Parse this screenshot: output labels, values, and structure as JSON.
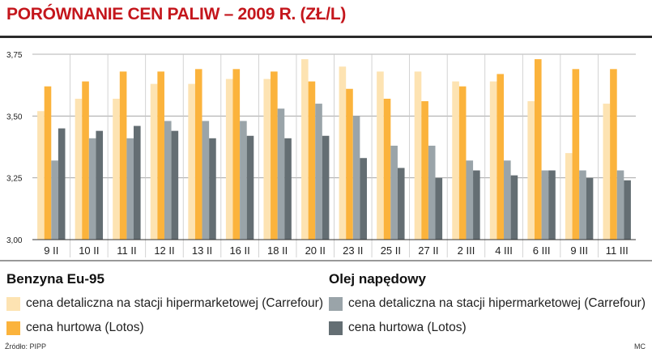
{
  "header": {
    "title": "PORÓWNANIE CEN PALIW – 2009 R. (ZŁ/L)"
  },
  "colors": {
    "benzyna_detal": "#fde3b2",
    "benzyna_hurt": "#fbb33c",
    "olej_detal": "#9aa4a9",
    "olej_hurt": "#646e73",
    "title": "#c4161c"
  },
  "legend": {
    "group1_title": "Benzyna Eu-95",
    "group1_items": [
      "cena detaliczna na stacji hipermarketowej (Carrefour)",
      "cena hurtowa (Lotos)"
    ],
    "group2_title": "Olej napędowy",
    "group2_items": [
      "cena detaliczna na stacji hipermarketowej (Carrefour)",
      "cena hurtowa (Lotos)"
    ]
  },
  "footer": {
    "source": "Źródło: PIPP",
    "author": "MC"
  },
  "chart_data": {
    "type": "bar",
    "title": "PORÓWNANIE CEN PALIW – 2009 R. (ZŁ/L)",
    "categories": [
      "9 II",
      "10 II",
      "11 II",
      "12 II",
      "13 II",
      "16 II",
      "18 II",
      "20 II",
      "23 II",
      "25 II",
      "27 II",
      "2 III",
      "4 III",
      "6 III",
      "9 III",
      "11 III"
    ],
    "ylim": [
      3.0,
      3.75
    ],
    "yticks": [
      "3,00",
      "3,25",
      "3,50",
      "3,75"
    ],
    "ytick_values": [
      3.0,
      3.25,
      3.5,
      3.75
    ],
    "grid": true,
    "legend_position": "bottom",
    "series": [
      {
        "name": "Benzyna Eu-95 – cena detaliczna na stacji hipermarketowej (Carrefour)",
        "values": [
          3.52,
          3.57,
          3.57,
          3.63,
          3.63,
          3.65,
          3.65,
          3.73,
          3.7,
          3.68,
          3.68,
          3.64,
          3.64,
          3.56,
          3.35,
          3.55
        ]
      },
      {
        "name": "Benzyna Eu-95 – cena hurtowa (Lotos)",
        "values": [
          3.62,
          3.64,
          3.68,
          3.68,
          3.69,
          3.69,
          3.68,
          3.64,
          3.61,
          3.57,
          3.56,
          3.62,
          3.67,
          3.73,
          3.69,
          3.69
        ]
      },
      {
        "name": "Olej napędowy – cena detaliczna na stacji hipermarketowej (Carrefour)",
        "values": [
          3.32,
          3.41,
          3.41,
          3.48,
          3.48,
          3.48,
          3.53,
          3.55,
          3.5,
          3.38,
          3.38,
          3.32,
          3.32,
          3.28,
          3.28,
          3.28
        ]
      },
      {
        "name": "Olej napędowy – cena hurtowa (Lotos)",
        "values": [
          3.45,
          3.44,
          3.46,
          3.44,
          3.41,
          3.42,
          3.41,
          3.42,
          3.33,
          3.29,
          3.25,
          3.28,
          3.26,
          3.28,
          3.25,
          3.24
        ]
      }
    ]
  }
}
